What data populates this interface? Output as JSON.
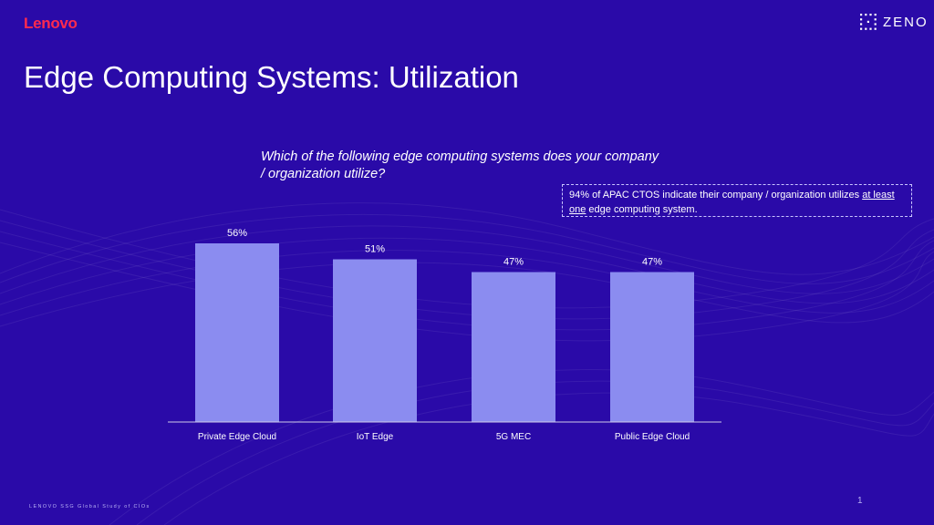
{
  "header": {
    "brand": "Lenovo",
    "partner": "ZENO",
    "title": "Edge Computing Systems: Utilization"
  },
  "callout": {
    "text_before": "94% of APAC CTOS indicate their company / organization utilizes ",
    "underlined_1": "at least",
    "underlined_2": "one",
    "text_after": " edge computing system."
  },
  "footer": {
    "study": "LENOVO SSG Global Study of CIOs",
    "page": "1"
  },
  "colors": {
    "background": "#2a0aa8",
    "bar": "#8b8cf0",
    "brand_red": "#ff2a4f"
  },
  "chart_data": {
    "type": "bar",
    "title": "Which of the following edge computing systems does your company / organization utilize?",
    "categories": [
      "Private Edge Cloud",
      "IoT Edge",
      "5G MEC",
      "Public Edge Cloud"
    ],
    "values": [
      56,
      51,
      47,
      47
    ],
    "value_labels": [
      "56%",
      "51%",
      "47%",
      "47%"
    ],
    "xlabel": "",
    "ylabel": "",
    "ylim": [
      0,
      100
    ],
    "grid": false,
    "legend": "none"
  }
}
